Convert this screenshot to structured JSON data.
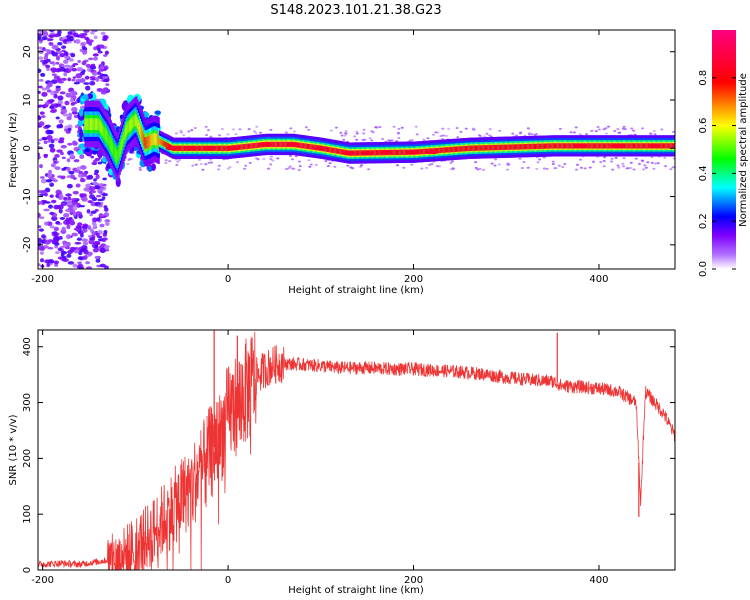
{
  "figure": {
    "title": "S148.2023.101.21.38.G23"
  },
  "chart_data": [
    {
      "type": "heatmap",
      "xlabel": "Height of straight line (km)",
      "ylabel": "Frequency (Hz)",
      "xlim": [
        -205,
        482
      ],
      "ylim": [
        -25,
        24.5
      ],
      "xticks": [
        -200,
        0,
        200,
        400
      ],
      "yticks": [
        -20,
        -10,
        0,
        10,
        20
      ],
      "colorbar": {
        "label": "Normalized spectral amplitude",
        "range": [
          0,
          1
        ],
        "ticks": [
          0.0,
          0.2,
          0.4,
          0.6,
          0.8
        ],
        "colormap": [
          "#ffffff",
          "#7f00ff",
          "#0000ff",
          "#00ffff",
          "#00ff00",
          "#ffff00",
          "#ff0000",
          "#ff0080"
        ]
      },
      "ridge": [
        {
          "x": -140,
          "freq": 5,
          "amp": 0.55
        },
        {
          "x": -130,
          "freq": 2,
          "amp": 0.5
        },
        {
          "x": -120,
          "freq": -2,
          "amp": 0.5
        },
        {
          "x": -110,
          "freq": 4,
          "amp": 0.55
        },
        {
          "x": -100,
          "freq": 6,
          "amp": 0.55
        },
        {
          "x": -90,
          "freq": 1,
          "amp": 0.75
        },
        {
          "x": -80,
          "freq": 2,
          "amp": 0.6
        },
        {
          "x": -60,
          "freq": 0,
          "amp": 0.9
        },
        {
          "x": 0,
          "freq": 0,
          "amp": 0.95
        },
        {
          "x": 40,
          "freq": 0.8,
          "amp": 1.0
        },
        {
          "x": 70,
          "freq": 0.8,
          "amp": 1.0
        },
        {
          "x": 100,
          "freq": 0,
          "amp": 0.95
        },
        {
          "x": 130,
          "freq": -1,
          "amp": 0.95
        },
        {
          "x": 200,
          "freq": -0.8,
          "amp": 0.95
        },
        {
          "x": 260,
          "freq": 0,
          "amp": 0.9
        },
        {
          "x": 350,
          "freq": 0.5,
          "amp": 0.95
        },
        {
          "x": 482,
          "freq": 0.5,
          "amp": 0.95
        }
      ]
    },
    {
      "type": "line",
      "xlabel": "Height of straight line (km)",
      "ylabel": "SNR (10 * v/v)",
      "xlim": [
        -205,
        482
      ],
      "ylim": [
        0,
        430
      ],
      "xticks": [
        -200,
        0,
        200,
        400
      ],
      "yticks": [
        0,
        100,
        200,
        300,
        400
      ],
      "series": [
        {
          "color": "#ee3333",
          "x": [
            -205,
            -180,
            -160,
            -140,
            -120,
            -110,
            -100,
            -90,
            -80,
            -70,
            -60,
            -50,
            -40,
            -30,
            -20,
            -10,
            0,
            10,
            20,
            30,
            40,
            50,
            60,
            80,
            100,
            120,
            150,
            180,
            200,
            220,
            250,
            280,
            300,
            330,
            350,
            360,
            380,
            400,
            420,
            430,
            440,
            445,
            450,
            460,
            470,
            482
          ],
          "y": [
            10,
            12,
            10,
            15,
            20,
            30,
            45,
            55,
            70,
            90,
            110,
            130,
            150,
            175,
            210,
            230,
            280,
            300,
            320,
            345,
            360,
            368,
            370,
            368,
            366,
            362,
            362,
            360,
            360,
            358,
            355,
            350,
            345,
            340,
            338,
            330,
            328,
            325,
            320,
            310,
            300,
            120,
            320,
            300,
            280,
            240
          ]
        }
      ],
      "spikes": [
        {
          "x": -15,
          "y": 430
        },
        {
          "x": 10,
          "y": 420
        },
        {
          "x": 355,
          "y": 425
        },
        {
          "x": 443,
          "y": 95
        }
      ]
    }
  ]
}
